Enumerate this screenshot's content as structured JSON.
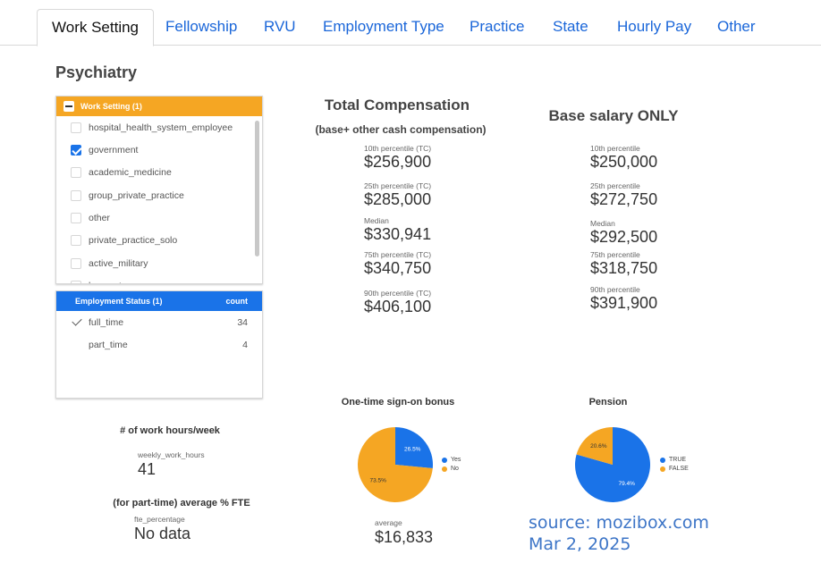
{
  "tabs": [
    {
      "label": "Work Setting",
      "active": true
    },
    {
      "label": "Fellowship"
    },
    {
      "label": "RVU"
    },
    {
      "label": "Employment Type"
    },
    {
      "label": "Practice"
    },
    {
      "label": "State"
    },
    {
      "label": "Hourly Pay"
    },
    {
      "label": "Other"
    }
  ],
  "page_title": "Psychiatry",
  "work_setting_filter": {
    "header": "Work Setting (1)",
    "items": [
      {
        "label": "hospital_health_system_employee",
        "checked": false
      },
      {
        "label": "government",
        "checked": true
      },
      {
        "label": "academic_medicine",
        "checked": false
      },
      {
        "label": "group_private_practice",
        "checked": false
      },
      {
        "label": "other",
        "checked": false
      },
      {
        "label": "private_practice_solo",
        "checked": false
      },
      {
        "label": "active_military",
        "checked": false
      },
      {
        "label": "locum_tenens",
        "checked": false
      }
    ]
  },
  "employment_status_filter": {
    "header": "Employment Status (1)",
    "count_header": "count",
    "items": [
      {
        "label": "full_time",
        "count": "34",
        "checked": true
      },
      {
        "label": "part_time",
        "count": "4",
        "checked": false
      }
    ]
  },
  "total_comp": {
    "title": "Total Compensation",
    "subtitle": "(base+ other cash compensation)",
    "metrics": [
      {
        "label": "10th percentile (TC)",
        "value": "$256,900"
      },
      {
        "label": "25th percentile (TC)",
        "value": "$285,000"
      },
      {
        "label": "Median",
        "value": "$330,941"
      },
      {
        "label": "75th percentile (TC)",
        "value": "$340,750"
      },
      {
        "label": "90th percentile (TC)",
        "value": "$406,100"
      }
    ]
  },
  "base_salary": {
    "title": "Base salary ONLY",
    "metrics": [
      {
        "label": "10th percentile",
        "value": "$250,000"
      },
      {
        "label": "25th percentile",
        "value": "$272,750"
      },
      {
        "label": "Median",
        "value": "$292,500"
      },
      {
        "label": "75th percentile",
        "value": "$318,750"
      },
      {
        "label": "90th percentile",
        "value": "$391,900"
      }
    ]
  },
  "work_hours": {
    "title": "# of work hours/week",
    "label": "weekly_work_hours",
    "value": "41"
  },
  "fte": {
    "title": "(for part-time) average % FTE",
    "label": "fte_percentage",
    "value": "No data"
  },
  "bonus_avg": {
    "label": "average",
    "value": "$16,833"
  },
  "source": {
    "line1": "source: mozibox.com",
    "line2": "Mar 2, 2025"
  },
  "colors": {
    "blue": "#1a73e8",
    "orange": "#f5a623",
    "link": "#1a66d9",
    "source": "#3d75c7"
  },
  "chart_data": [
    {
      "type": "pie",
      "title": "One-time sign-on bonus",
      "categories": [
        "Yes",
        "No"
      ],
      "values": [
        26.5,
        73.5
      ],
      "labels": [
        "26.5%",
        "73.5%"
      ],
      "colors": [
        "#1a73e8",
        "#f5a623"
      ],
      "legend": "right"
    },
    {
      "type": "pie",
      "title": "Pension",
      "categories": [
        "TRUE",
        "FALSE"
      ],
      "values": [
        79.4,
        20.6
      ],
      "labels": [
        "79.4%",
        "20.6%"
      ],
      "colors": [
        "#1a73e8",
        "#f5a623"
      ],
      "legend": "right"
    }
  ]
}
